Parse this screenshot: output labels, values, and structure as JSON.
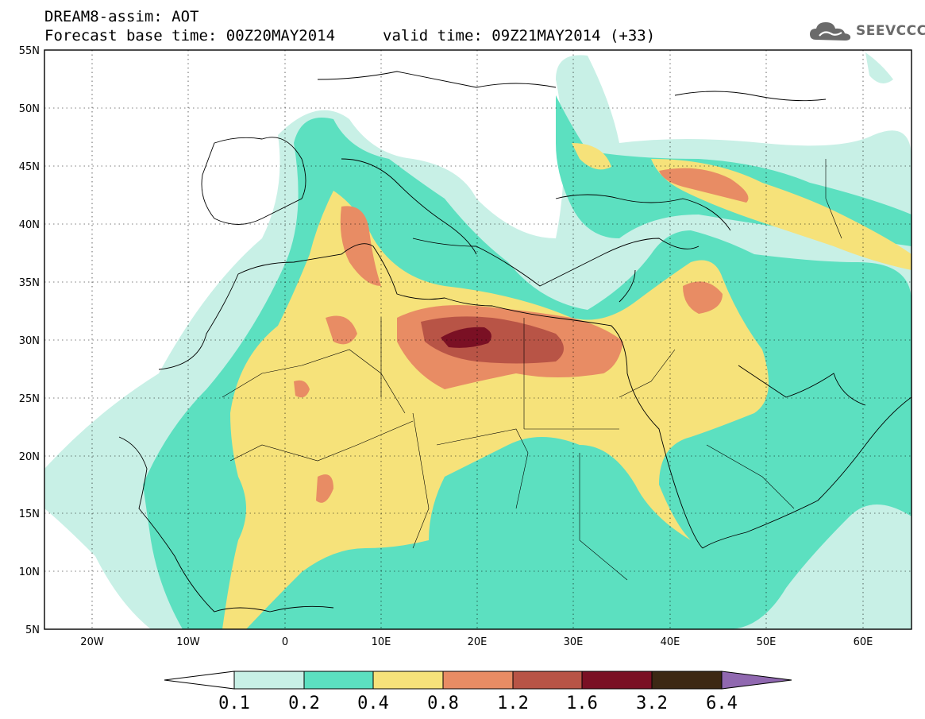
{
  "header": {
    "line1": "DREAM8-assim: AOT",
    "line2_left": "Forecast base time: 00Z20MAY2014",
    "line2_right": "valid time: 09Z21MAY2014 (+33)",
    "logo_text": "SEEVCCC",
    "logo_icon": "cloud-icon"
  },
  "axes": {
    "lat_labels": [
      "55N",
      "50N",
      "45N",
      "40N",
      "35N",
      "30N",
      "25N",
      "20N",
      "15N",
      "10N",
      "5N"
    ],
    "lon_labels": [
      "20W",
      "10W",
      "0",
      "10E",
      "20E",
      "30E",
      "40E",
      "50E",
      "60E"
    ],
    "lat_range": [
      5,
      55
    ],
    "lon_range": [
      -25,
      65
    ]
  },
  "legend": {
    "labels": [
      "0.1",
      "0.2",
      "0.4",
      "0.8",
      "1.2",
      "1.6",
      "3.2",
      "6.4"
    ],
    "colors": [
      "#ffffff",
      "#c8f0e6",
      "#5ce0c0",
      "#f6e27a",
      "#e88c64",
      "#b85446",
      "#7a1024",
      "#3c2814",
      "#9068b0"
    ]
  },
  "colors": {
    "c1": "#c8f0e6",
    "c2": "#5ce0c0",
    "c3": "#f6e27a",
    "c4": "#e88c64",
    "c5": "#b85446",
    "c6": "#7a1024"
  }
}
